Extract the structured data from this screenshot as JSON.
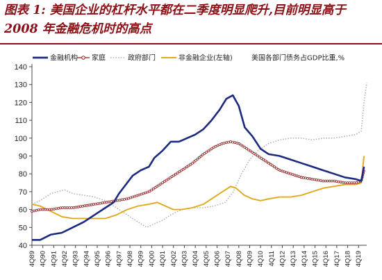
{
  "figure": {
    "title": "图表 1: 美国企业的杠杆水平都在二季度明显爬升,目前明显高于 2008 年金融危机时的高点"
  },
  "chart_data": {
    "type": "line",
    "title": "图表 1: 美国企业的杠杆水平都在二季度明显爬升,目前明显高于 2008 年金融危机时的高点",
    "xlabel": "",
    "ylabel": "",
    "x_start": 1989.75,
    "x_end": 2020.5,
    "x_ticks": [
      "4Q89",
      "4Q90",
      "4Q91",
      "4Q92",
      "4Q93",
      "4Q94",
      "4Q95",
      "4Q96",
      "4Q97",
      "4Q98",
      "4Q99",
      "4Q00",
      "4Q01",
      "4Q02",
      "4Q03",
      "4Q04",
      "4Q05",
      "4Q06",
      "4Q07",
      "4Q08",
      "4Q09",
      "4Q10",
      "4Q11",
      "4Q12",
      "4Q13",
      "4Q14",
      "4Q15",
      "4Q16",
      "4Q17",
      "4Q18",
      "4Q19"
    ],
    "ylim": [
      40,
      140
    ],
    "yticks": [
      40,
      50,
      60,
      70,
      80,
      90,
      100,
      110,
      120,
      130,
      140
    ],
    "grid": false,
    "legend_position": "top",
    "unit_note": "美国各部门债务占GDP比重,%",
    "series": [
      {
        "name": "金融机构",
        "color": "#1b2a80",
        "style": "solid",
        "axis": "left",
        "points": [
          [
            1989.75,
            43
          ],
          [
            1990.5,
            43
          ],
          [
            1991.5,
            46
          ],
          [
            1992.5,
            47
          ],
          [
            1993.5,
            50
          ],
          [
            1994.5,
            53
          ],
          [
            1995.5,
            57
          ],
          [
            1996.5,
            61
          ],
          [
            1997.25,
            64
          ],
          [
            1997.75,
            69
          ],
          [
            1998.5,
            75
          ],
          [
            1999,
            79
          ],
          [
            1999.75,
            82
          ],
          [
            2000.5,
            84
          ],
          [
            2001,
            89
          ],
          [
            2001.75,
            93
          ],
          [
            2002.5,
            98
          ],
          [
            2003.25,
            98
          ],
          [
            2004,
            100
          ],
          [
            2004.75,
            102
          ],
          [
            2005.5,
            105
          ],
          [
            2006.25,
            110
          ],
          [
            2007,
            116
          ],
          [
            2007.6,
            122
          ],
          [
            2008.2,
            124
          ],
          [
            2008.75,
            118
          ],
          [
            2009.3,
            106
          ],
          [
            2010,
            101
          ],
          [
            2010.75,
            94
          ],
          [
            2011.5,
            91
          ],
          [
            2012.5,
            90
          ],
          [
            2013.5,
            88
          ],
          [
            2014.5,
            86
          ],
          [
            2015.5,
            84
          ],
          [
            2016.5,
            82
          ],
          [
            2017.5,
            80
          ],
          [
            2018.5,
            78
          ],
          [
            2019.5,
            77
          ],
          [
            2020,
            76
          ],
          [
            2020.25,
            84
          ]
        ]
      },
      {
        "name": "家庭",
        "color": "#8b1a1a",
        "style": "circles",
        "axis": "left",
        "points": [
          [
            1989.75,
            59
          ],
          [
            1990.5,
            60
          ],
          [
            1991.5,
            60
          ],
          [
            1992.5,
            61
          ],
          [
            1993.5,
            61
          ],
          [
            1994.5,
            62
          ],
          [
            1995.5,
            63
          ],
          [
            1996.5,
            64
          ],
          [
            1997.5,
            65
          ],
          [
            1998.5,
            66
          ],
          [
            1999.5,
            68
          ],
          [
            2000.5,
            70
          ],
          [
            2001.5,
            74
          ],
          [
            2002.5,
            78
          ],
          [
            2003.5,
            82
          ],
          [
            2004.5,
            86
          ],
          [
            2005.5,
            91
          ],
          [
            2006.5,
            95
          ],
          [
            2007.25,
            97
          ],
          [
            2008,
            98
          ],
          [
            2008.75,
            97
          ],
          [
            2009.5,
            94
          ],
          [
            2010.5,
            90
          ],
          [
            2011.5,
            86
          ],
          [
            2012.5,
            82
          ],
          [
            2013.5,
            80
          ],
          [
            2014.5,
            78
          ],
          [
            2015.5,
            77
          ],
          [
            2016.5,
            76
          ],
          [
            2017.5,
            76
          ],
          [
            2018.5,
            75
          ],
          [
            2019.5,
            75
          ],
          [
            2020,
            76
          ],
          [
            2020.25,
            82
          ]
        ]
      },
      {
        "name": "政府部门",
        "color": "#b0b0b0",
        "style": "dotted",
        "axis": "left",
        "points": [
          [
            1989.75,
            63
          ],
          [
            1990.5,
            65
          ],
          [
            1991.5,
            69
          ],
          [
            1992.75,
            71
          ],
          [
            1993.5,
            69
          ],
          [
            1994.5,
            68
          ],
          [
            1995.5,
            67
          ],
          [
            1996.5,
            65
          ],
          [
            1997.5,
            61
          ],
          [
            1998.5,
            57
          ],
          [
            1999.5,
            53
          ],
          [
            2000.3,
            50
          ],
          [
            2001,
            52
          ],
          [
            2001.75,
            54
          ],
          [
            2002.5,
            57
          ],
          [
            2003.5,
            60
          ],
          [
            2004.5,
            61
          ],
          [
            2005.5,
            61
          ],
          [
            2006.5,
            62
          ],
          [
            2007.5,
            64
          ],
          [
            2008.25,
            70
          ],
          [
            2009,
            80
          ],
          [
            2009.75,
            88
          ],
          [
            2010.5,
            93
          ],
          [
            2011.5,
            97
          ],
          [
            2012.5,
            99
          ],
          [
            2013.5,
            100
          ],
          [
            2014.5,
            100
          ],
          [
            2015.5,
            99
          ],
          [
            2016.5,
            100
          ],
          [
            2017.5,
            100
          ],
          [
            2018.5,
            101
          ],
          [
            2019.5,
            102
          ],
          [
            2020,
            104
          ],
          [
            2020.25,
            120
          ],
          [
            2020.5,
            131
          ]
        ]
      },
      {
        "name": "非金融企业(左轴)",
        "color": "#e0a81a",
        "style": "solid",
        "axis": "left",
        "points": [
          [
            1989.75,
            63
          ],
          [
            1990.5,
            62
          ],
          [
            1991.5,
            59
          ],
          [
            1992.5,
            56
          ],
          [
            1993.5,
            55
          ],
          [
            1994.5,
            55
          ],
          [
            1995.5,
            55
          ],
          [
            1996.5,
            55
          ],
          [
            1997.5,
            57
          ],
          [
            1998.5,
            60
          ],
          [
            1999.5,
            62
          ],
          [
            2000.5,
            63
          ],
          [
            2001.25,
            64
          ],
          [
            2002,
            62
          ],
          [
            2002.75,
            60
          ],
          [
            2003.5,
            60
          ],
          [
            2004.5,
            61
          ],
          [
            2005.5,
            63
          ],
          [
            2006.5,
            67
          ],
          [
            2007.25,
            70
          ],
          [
            2008,
            73
          ],
          [
            2008.5,
            72
          ],
          [
            2009.25,
            68
          ],
          [
            2010,
            66
          ],
          [
            2010.75,
            65
          ],
          [
            2011.5,
            66
          ],
          [
            2012.5,
            67
          ],
          [
            2013.5,
            67
          ],
          [
            2014.5,
            68
          ],
          [
            2015.5,
            70
          ],
          [
            2016.5,
            72
          ],
          [
            2017.5,
            73
          ],
          [
            2018.5,
            74
          ],
          [
            2019.5,
            74
          ],
          [
            2020,
            75
          ],
          [
            2020.25,
            90
          ]
        ]
      }
    ]
  }
}
